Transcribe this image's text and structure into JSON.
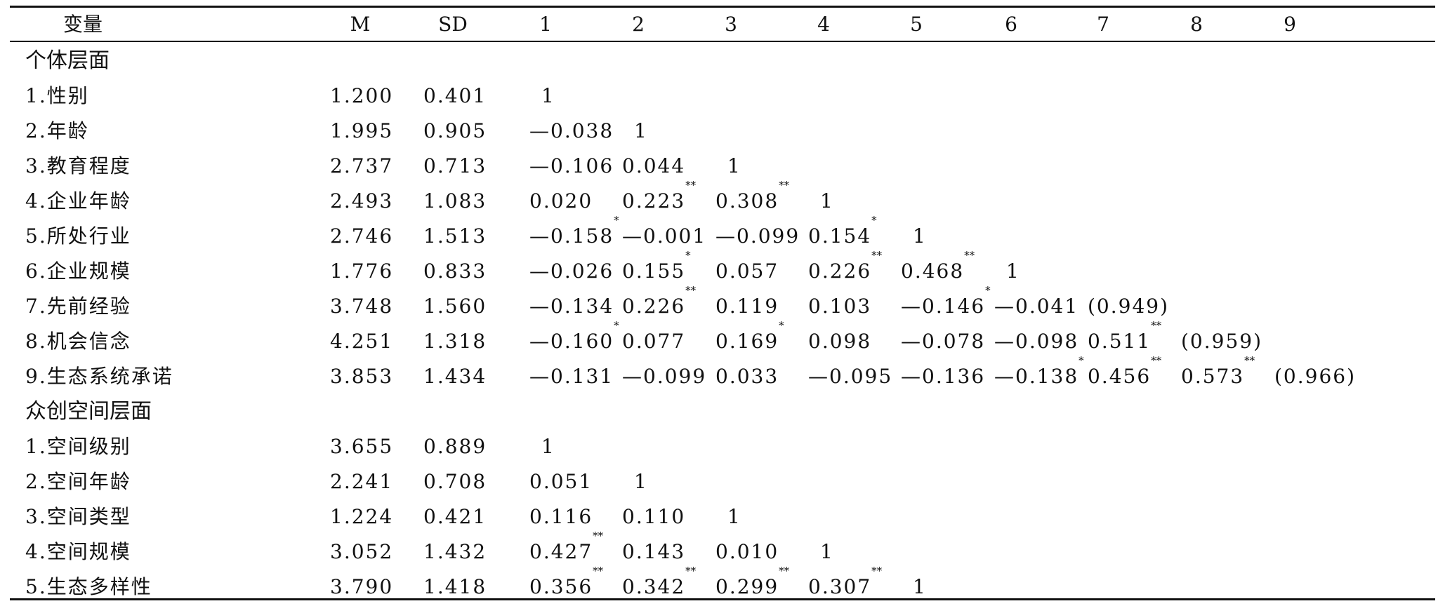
{
  "table": {
    "headers": [
      "变量",
      "M",
      "SD",
      "1",
      "2",
      "3",
      "4",
      "5",
      "6",
      "7",
      "8",
      "9"
    ],
    "groups": [
      {
        "title": "个体层面",
        "rows": [
          {
            "label": "1.性别",
            "M": "1.200",
            "SD": "0.401",
            "cells": [
              {
                "v": "1",
                "s": ""
              }
            ]
          },
          {
            "label": "2.年龄",
            "M": "1.995",
            "SD": "0.905",
            "cells": [
              {
                "v": "—0.038",
                "s": ""
              },
              {
                "v": "1",
                "s": ""
              }
            ]
          },
          {
            "label": "3.教育程度",
            "M": "2.737",
            "SD": "0.713",
            "cells": [
              {
                "v": "—0.106",
                "s": ""
              },
              {
                "v": "0.044",
                "s": ""
              },
              {
                "v": "1",
                "s": ""
              }
            ]
          },
          {
            "label": "4.企业年龄",
            "M": "2.493",
            "SD": "1.083",
            "cells": [
              {
                "v": "0.020",
                "s": ""
              },
              {
                "v": "0.223",
                "s": "**"
              },
              {
                "v": "0.308",
                "s": "**"
              },
              {
                "v": "1",
                "s": ""
              }
            ]
          },
          {
            "label": "5.所处行业",
            "M": "2.746",
            "SD": "1.513",
            "cells": [
              {
                "v": "—0.158",
                "s": "*"
              },
              {
                "v": "—0.001",
                "s": ""
              },
              {
                "v": "—0.099",
                "s": ""
              },
              {
                "v": "0.154",
                "s": "*"
              },
              {
                "v": "1",
                "s": ""
              }
            ]
          },
          {
            "label": "6.企业规模",
            "M": "1.776",
            "SD": "0.833",
            "cells": [
              {
                "v": "—0.026",
                "s": ""
              },
              {
                "v": "0.155",
                "s": "*"
              },
              {
                "v": "0.057",
                "s": ""
              },
              {
                "v": "0.226",
                "s": "**"
              },
              {
                "v": "0.468",
                "s": "**"
              },
              {
                "v": "1",
                "s": ""
              }
            ]
          },
          {
            "label": "7.先前经验",
            "M": "3.748",
            "SD": "1.560",
            "cells": [
              {
                "v": "—0.134",
                "s": ""
              },
              {
                "v": "0.226",
                "s": "**"
              },
              {
                "v": "0.119",
                "s": ""
              },
              {
                "v": "0.103",
                "s": ""
              },
              {
                "v": "—0.146",
                "s": "*"
              },
              {
                "v": "—0.041",
                "s": ""
              },
              {
                "v": "(0.949)",
                "s": ""
              }
            ]
          },
          {
            "label": "8.机会信念",
            "M": "4.251",
            "SD": "1.318",
            "cells": [
              {
                "v": "—0.160",
                "s": "*"
              },
              {
                "v": "0.077",
                "s": ""
              },
              {
                "v": "0.169",
                "s": "*"
              },
              {
                "v": "0.098",
                "s": ""
              },
              {
                "v": "—0.078",
                "s": ""
              },
              {
                "v": "—0.098",
                "s": ""
              },
              {
                "v": "0.511",
                "s": "**"
              },
              {
                "v": "(0.959)",
                "s": ""
              }
            ]
          },
          {
            "label": "9.生态系统承诺",
            "M": "3.853",
            "SD": "1.434",
            "cells": [
              {
                "v": "—0.131",
                "s": ""
              },
              {
                "v": "—0.099",
                "s": ""
              },
              {
                "v": "0.033",
                "s": ""
              },
              {
                "v": "—0.095",
                "s": ""
              },
              {
                "v": "—0.136",
                "s": ""
              },
              {
                "v": "—0.138",
                "s": "*"
              },
              {
                "v": "0.456",
                "s": "**"
              },
              {
                "v": "0.573",
                "s": "**"
              },
              {
                "v": "(0.966)",
                "s": ""
              }
            ]
          }
        ]
      },
      {
        "title": "众创空间层面",
        "rows": [
          {
            "label": "1.空间级别",
            "M": "3.655",
            "SD": "0.889",
            "cells": [
              {
                "v": "1",
                "s": ""
              }
            ]
          },
          {
            "label": "2.空间年龄",
            "M": "2.241",
            "SD": "0.708",
            "cells": [
              {
                "v": "0.051",
                "s": ""
              },
              {
                "v": "1",
                "s": ""
              }
            ]
          },
          {
            "label": "3.空间类型",
            "M": "1.224",
            "SD": "0.421",
            "cells": [
              {
                "v": "0.116",
                "s": ""
              },
              {
                "v": "0.110",
                "s": ""
              },
              {
                "v": "1",
                "s": ""
              }
            ]
          },
          {
            "label": "4.空间规模",
            "M": "3.052",
            "SD": "1.432",
            "cells": [
              {
                "v": "0.427",
                "s": "**"
              },
              {
                "v": "0.143",
                "s": ""
              },
              {
                "v": "0.010",
                "s": ""
              },
              {
                "v": "1",
                "s": ""
              }
            ]
          },
          {
            "label": "5.生态多样性",
            "M": "3.790",
            "SD": "1.418",
            "cells": [
              {
                "v": "0.356",
                "s": "**"
              },
              {
                "v": "0.342",
                "s": "**"
              },
              {
                "v": "0.299",
                "s": "**"
              },
              {
                "v": "0.307",
                "s": "**"
              },
              {
                "v": "1",
                "s": ""
              }
            ]
          }
        ]
      }
    ]
  }
}
